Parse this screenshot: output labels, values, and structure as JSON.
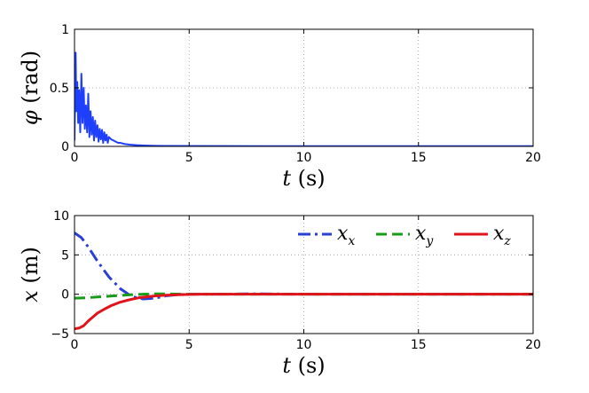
{
  "chart_data": [
    {
      "type": "line",
      "title": "",
      "xlabel": {
        "var": "t",
        "unit": "(s)"
      },
      "ylabel": {
        "var": "φ",
        "unit": "(rad)"
      },
      "xlim": [
        0,
        20
      ],
      "ylim": [
        0,
        1
      ],
      "xticks": [
        "0",
        "5",
        "10",
        "15",
        "20"
      ],
      "yticks": [
        "0",
        "0.5",
        "1"
      ],
      "grid": true,
      "series": [
        {
          "name": "",
          "color": "#1f3fff",
          "style": "solid",
          "x": [
            0,
            0.05,
            0.08,
            0.12,
            0.16,
            0.2,
            0.25,
            0.3,
            0.35,
            0.4,
            0.45,
            0.5,
            0.55,
            0.6,
            0.65,
            0.7,
            0.75,
            0.8,
            0.85,
            0.9,
            0.95,
            1.0,
            1.05,
            1.1,
            1.15,
            1.2,
            1.25,
            1.3,
            1.35,
            1.4,
            1.45,
            1.5,
            1.6,
            1.7,
            1.8,
            1.9,
            2.0,
            2.2,
            2.4,
            2.7,
            3.0,
            3.5,
            4,
            6,
            8,
            10,
            12,
            14,
            16,
            18,
            20
          ],
          "y": [
            0.05,
            0.8,
            0.3,
            0.55,
            0.2,
            0.48,
            0.12,
            0.62,
            0.2,
            0.5,
            0.15,
            0.35,
            0.12,
            0.45,
            0.08,
            0.3,
            0.1,
            0.25,
            0.05,
            0.22,
            0.08,
            0.18,
            0.04,
            0.15,
            0.06,
            0.14,
            0.03,
            0.12,
            0.05,
            0.1,
            0.03,
            0.08,
            0.06,
            0.05,
            0.04,
            0.03,
            0.03,
            0.02,
            0.015,
            0.01,
            0.008,
            0.005,
            0.004,
            0.003,
            0.002,
            0.002,
            0.002,
            0.002,
            0.002,
            0.002,
            0.002
          ]
        }
      ]
    },
    {
      "type": "line",
      "title": "",
      "xlabel": {
        "var": "t",
        "unit": "(s)"
      },
      "ylabel": {
        "var": "x",
        "unit": "(m)"
      },
      "xlim": [
        0,
        20
      ],
      "ylim": [
        -5,
        10
      ],
      "xticks": [
        "0",
        "5",
        "10",
        "15",
        "20"
      ],
      "yticks": [
        "-5",
        "0",
        "5",
        "10"
      ],
      "grid": true,
      "legend": "top-right",
      "series": [
        {
          "name": {
            "var": "x",
            "sub": "x"
          },
          "color": "#2a3fd6",
          "style": "dashdot",
          "x": [
            0,
            0.3,
            0.6,
            1.0,
            1.5,
            2.0,
            2.5,
            3.0,
            3.5,
            4.0,
            4.5,
            5.0,
            6,
            8,
            10,
            12,
            14,
            16,
            18,
            20
          ],
          "y": [
            7.8,
            7.2,
            6.0,
            4.2,
            2.2,
            0.7,
            -0.3,
            -0.6,
            -0.5,
            -0.2,
            -0.05,
            0.0,
            0.0,
            0.05,
            0.0,
            0.0,
            0.0,
            0.0,
            0.0,
            0.0
          ]
        },
        {
          "name": {
            "var": "x",
            "sub": "y"
          },
          "color": "#1a9a1a",
          "style": "dashed",
          "x": [
            0,
            0.5,
            1.0,
            1.5,
            2.0,
            2.5,
            3.0,
            3.5,
            4.0,
            4.5,
            5.0,
            6,
            8,
            10,
            12,
            14,
            16,
            18,
            20
          ],
          "y": [
            -0.5,
            -0.45,
            -0.35,
            -0.25,
            -0.15,
            -0.05,
            0.0,
            0.05,
            0.05,
            0.02,
            0.0,
            0.0,
            0.0,
            0.0,
            0.0,
            0.0,
            0.0,
            0.0,
            0.0
          ]
        },
        {
          "name": {
            "var": "x",
            "sub": "z"
          },
          "color": "#e0141a",
          "style": "solid",
          "x": [
            0,
            0.2,
            0.4,
            0.6,
            0.8,
            1.0,
            1.3,
            1.6,
            2.0,
            2.4,
            2.8,
            3.2,
            3.6,
            4.0,
            4.5,
            5.0,
            5.5,
            6,
            8,
            10,
            12,
            14,
            16,
            18,
            20
          ],
          "y": [
            -4.4,
            -4.3,
            -4.0,
            -3.4,
            -2.9,
            -2.4,
            -1.9,
            -1.45,
            -1.0,
            -0.7,
            -0.45,
            -0.3,
            -0.2,
            -0.12,
            -0.06,
            -0.02,
            0.0,
            0.0,
            0.0,
            0.0,
            0.0,
            0.0,
            0.0,
            0.0,
            0.0
          ]
        }
      ]
    }
  ]
}
